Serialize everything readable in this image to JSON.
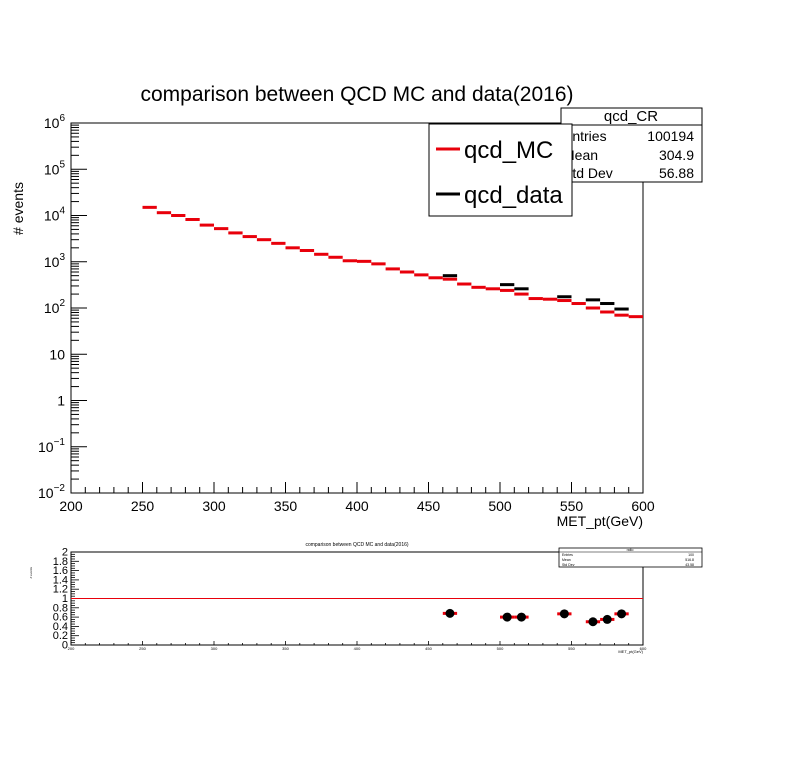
{
  "chart_data": [
    {
      "type": "histogram",
      "title": "comparison between QCD MC and data(2016)",
      "xlabel": "MET_pt(GeV)",
      "ylabel": "# events",
      "xlim": [
        200,
        600
      ],
      "ylim": [
        0.01,
        1000000
      ],
      "yscale": "log",
      "grid": false,
      "xticks": [
        "200",
        "250",
        "300",
        "350",
        "400",
        "450",
        "500",
        "550",
        "600"
      ],
      "yticks": [
        {
          "v": 0.01,
          "b": "10",
          "e": "−2"
        },
        {
          "v": 0.1,
          "b": "10",
          "e": "−1"
        },
        {
          "v": 1,
          "b": "1",
          "e": ""
        },
        {
          "v": 10,
          "b": "10",
          "e": ""
        },
        {
          "v": 100,
          "b": "10",
          "e": "2"
        },
        {
          "v": 1000,
          "b": "10",
          "e": "3"
        },
        {
          "v": 10000,
          "b": "10",
          "e": "4"
        },
        {
          "v": 100000,
          "b": "10",
          "e": "5"
        },
        {
          "v": 1000000,
          "b": "10",
          "e": "6"
        }
      ],
      "stats_box": {
        "title": "qcd_CR",
        "rows": [
          {
            "label": "Entries",
            "value": "100194"
          },
          {
            "label": "Mean",
            "value": "304.9"
          },
          {
            "label": "Std Dev",
            "value": "56.88"
          }
        ]
      },
      "legend": {
        "placement": "top-right"
      },
      "series": [
        {
          "name": "qcd_MC",
          "color": "#e8000b",
          "bin_width": 10,
          "x": [
            250,
            260,
            270,
            280,
            290,
            300,
            310,
            320,
            330,
            340,
            350,
            360,
            370,
            380,
            390,
            400,
            410,
            420,
            430,
            440,
            450,
            460,
            470,
            480,
            490,
            500,
            510,
            520,
            530,
            540,
            550,
            560,
            570,
            580,
            590
          ],
          "values": [
            15000,
            11500,
            10000,
            8200,
            6200,
            5200,
            4200,
            3500,
            3000,
            2500,
            2000,
            1750,
            1450,
            1250,
            1050,
            1020,
            900,
            700,
            600,
            520,
            450,
            420,
            330,
            280,
            260,
            240,
            200,
            160,
            155,
            145,
            125,
            100,
            82,
            70,
            65
          ]
        },
        {
          "name": "qcd_data",
          "color": "#000000",
          "bin_width": 10,
          "x": [
            460,
            500,
            510,
            540,
            560,
            570,
            580
          ],
          "values": [
            500,
            320,
            260,
            175,
            150,
            125,
            95
          ]
        }
      ]
    },
    {
      "type": "scatter",
      "title": "comparison between QCD MC and data(2016)",
      "xlabel": "MET_pt(GeV)",
      "ylabel": "# events",
      "xlim": [
        200,
        600
      ],
      "ylim": [
        0,
        2
      ],
      "xticks": [
        "200",
        "250",
        "300",
        "350",
        "400",
        "450",
        "500",
        "550",
        "600"
      ],
      "yticks": [
        "0",
        "0.2",
        "0.4",
        "0.6",
        "0.8",
        "1",
        "1.2",
        "1.4",
        "1.6",
        "1.8",
        "2"
      ],
      "stats_box": {
        "title": "ratio",
        "rows": [
          {
            "label": "Entries",
            "value": "100"
          },
          {
            "label": "Mean",
            "value": "516.8"
          },
          {
            "label": "Std Dev",
            "value": "43.58"
          }
        ]
      },
      "reference_line": {
        "y": 1,
        "color": "#e8000b"
      },
      "series": [
        {
          "name": "",
          "color": "#000000",
          "bar_color": "#e8000b",
          "bin_width": 10,
          "x": [
            465,
            505,
            515,
            545,
            565,
            575,
            585
          ],
          "values": [
            0.68,
            0.6,
            0.6,
            0.67,
            0.5,
            0.55,
            0.67
          ]
        }
      ]
    }
  ]
}
